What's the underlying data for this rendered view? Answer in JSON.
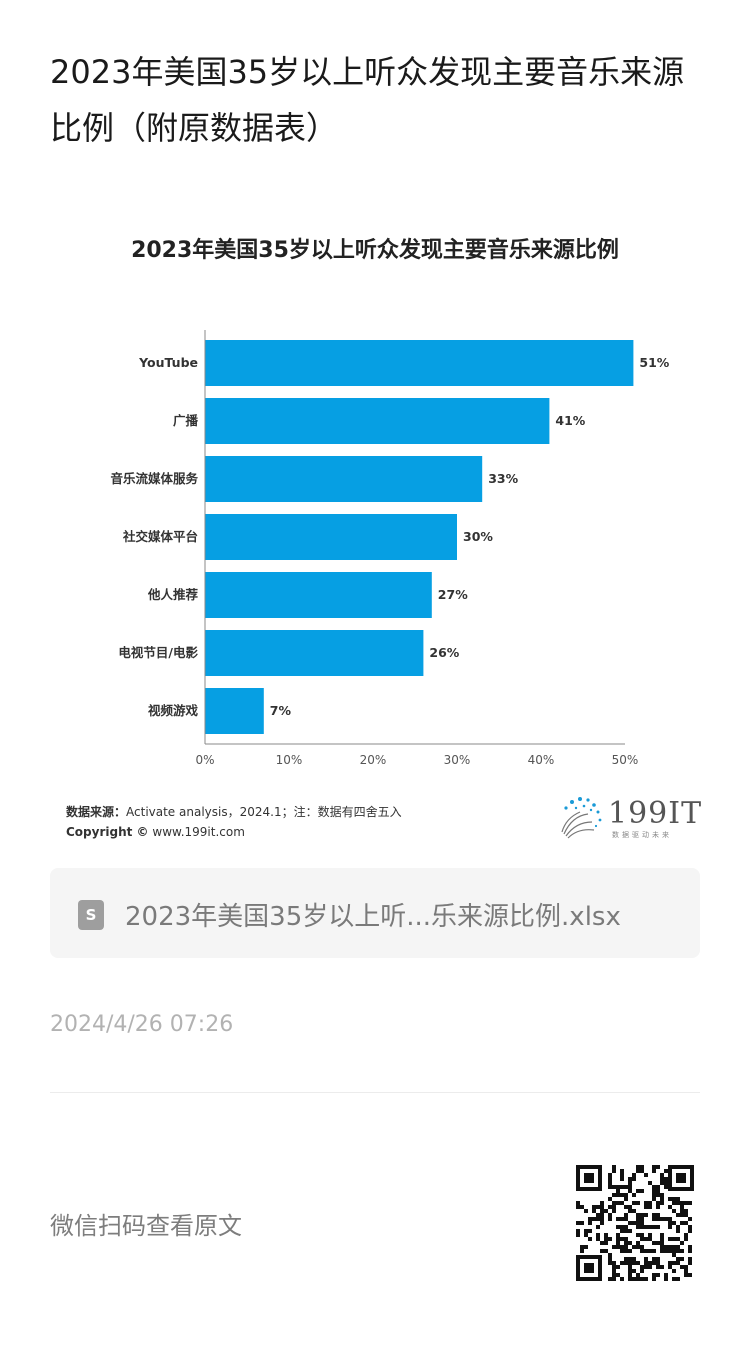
{
  "article": {
    "title": "2023年美国35岁以上听众发现主要音乐来源比例（附原数据表）"
  },
  "chart_data": {
    "type": "bar",
    "orientation": "horizontal",
    "title": "2023年美国35岁以上听众发现主要音乐来源比例",
    "categories": [
      "YouTube",
      "广播",
      "音乐流媒体服务",
      "社交媒体平台",
      "他人推荐",
      "电视节目/电影",
      "视频游戏"
    ],
    "values": [
      51,
      41,
      33,
      30,
      27,
      26,
      7
    ],
    "value_labels": [
      "51%",
      "41%",
      "33%",
      "30%",
      "27%",
      "26%",
      "7%"
    ],
    "xlim": [
      0,
      50
    ],
    "ticks": [
      "0%",
      "10%",
      "20%",
      "30%",
      "40%",
      "50%"
    ],
    "bar_color": "#069fe3",
    "grid": false,
    "source_label": "数据来源：",
    "source_text": "Activate analysis，2024.1；注：数据有四舍五入",
    "copyright_label": "Copyright ©",
    "copyright_text": "www.199it.com",
    "logo_text": "199IT",
    "logo_tagline": "数据驱动未来"
  },
  "attachment": {
    "icon": "spreadsheet-icon",
    "icon_letter": "S",
    "filename": "2023年美国35岁以上听...乐来源比例.xlsx"
  },
  "meta": {
    "timestamp": "2024/4/26 07:26"
  },
  "footer": {
    "qr_prompt": "微信扫码查看原文",
    "qr_icon": "qr-code-icon"
  }
}
